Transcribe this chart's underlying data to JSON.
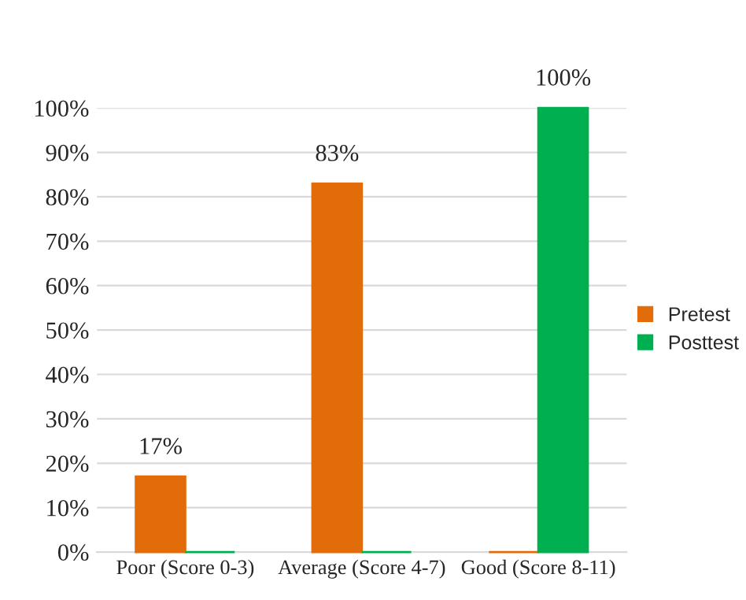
{
  "chart_data": {
    "type": "bar",
    "categories": [
      "Poor (Score 0-3)",
      "Average (Score 4-7)",
      "Good (Score 8-11)"
    ],
    "series": [
      {
        "name": "Pretest",
        "color": "#e36c0a",
        "values": [
          17,
          83,
          0
        ],
        "value_labels": [
          "17%",
          "83%",
          null
        ]
      },
      {
        "name": "Posttest",
        "color": "#00b050",
        "values": [
          0,
          0,
          100
        ],
        "value_labels": [
          null,
          null,
          "100%"
        ]
      }
    ],
    "ylim": [
      0,
      100
    ],
    "yticks": [
      {
        "value": 0,
        "label": "0%"
      },
      {
        "value": 10,
        "label": "10%"
      },
      {
        "value": 20,
        "label": "20%"
      },
      {
        "value": 30,
        "label": "30%"
      },
      {
        "value": 40,
        "label": "40%"
      },
      {
        "value": 50,
        "label": "50%"
      },
      {
        "value": 60,
        "label": "60%"
      },
      {
        "value": 70,
        "label": "70%"
      },
      {
        "value": 80,
        "label": "80%"
      },
      {
        "value": 90,
        "label": "90%"
      },
      {
        "value": 100,
        "label": "100%"
      }
    ],
    "grid": "y",
    "legend": "right"
  }
}
